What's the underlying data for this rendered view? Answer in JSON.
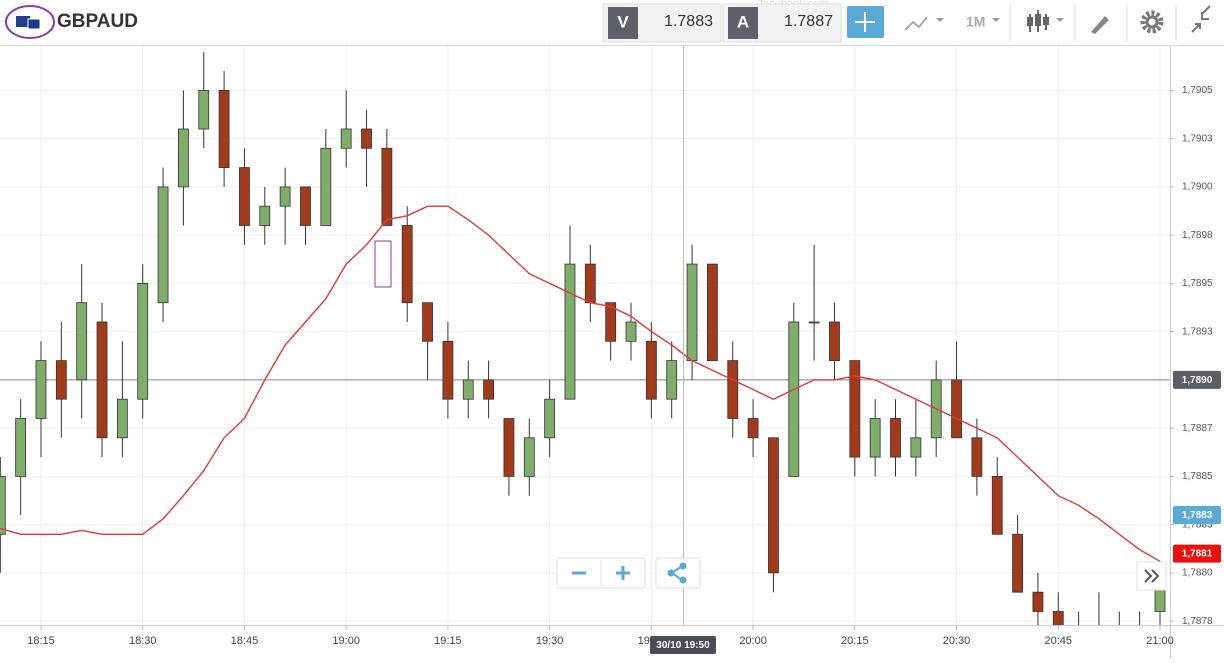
{
  "header": {
    "symbol": "GBPAUD",
    "bid_label": "V",
    "bid": 1.7883,
    "ask_label": "A",
    "ask": 1.7887,
    "timeframe": "1M",
    "watermark": "facebook.com"
  },
  "chart_data": {
    "type": "candlestick",
    "categories": [
      null,
      null,
      "18:15",
      null,
      null,
      null,
      null,
      "18:30",
      null,
      null,
      null,
      null,
      "18:45",
      null,
      null,
      null,
      null,
      "19:00",
      null,
      null,
      null,
      null,
      "19:15",
      null,
      null,
      null,
      null,
      "19:30",
      null,
      null,
      null,
      null,
      "19:45",
      null,
      null,
      null,
      null,
      "20:00",
      null,
      null,
      null,
      null,
      "20:15",
      null,
      null,
      null,
      null,
      "20:30",
      null,
      null,
      null,
      null,
      "20:45",
      null,
      null,
      null,
      null,
      "21:00"
    ],
    "open": [
      1.7882,
      1.7885,
      1.7888,
      1.7891,
      1.789,
      1.7893,
      1.7887,
      1.7889,
      1.7894,
      1.79,
      1.7903,
      1.7905,
      1.7901,
      1.7898,
      1.7899,
      1.79,
      1.7898,
      1.7902,
      1.7903,
      1.7902,
      1.7898,
      1.7894,
      1.7892,
      1.7889,
      1.789,
      1.7888,
      1.7885,
      1.7887,
      1.7889,
      1.7896,
      1.7894,
      1.7892,
      1.7892,
      1.7889,
      1.7891,
      1.7896,
      1.7891,
      1.7888,
      1.7887,
      1.7885,
      1.7893,
      1.7893,
      1.7891,
      1.7886,
      1.7888,
      1.7886,
      1.7887,
      1.789,
      1.7887,
      1.7885,
      1.7882,
      1.7879,
      1.7878,
      1.7877,
      1.7877,
      1.7877,
      1.7876,
      1.7878
    ],
    "high": [
      1.7886,
      1.7889,
      1.7892,
      1.7893,
      1.7896,
      1.7894,
      1.7892,
      1.7896,
      1.7901,
      1.7905,
      1.7907,
      1.7906,
      1.7902,
      1.79,
      1.7901,
      1.79,
      1.7903,
      1.7905,
      1.7904,
      1.7903,
      1.7899,
      1.7894,
      1.7893,
      1.7891,
      1.7891,
      1.7888,
      1.7888,
      1.789,
      1.7898,
      1.7897,
      1.7894,
      1.7894,
      1.7893,
      1.7892,
      1.7897,
      1.7896,
      1.7892,
      1.7889,
      1.7887,
      1.7894,
      1.7897,
      1.7894,
      1.7891,
      1.7889,
      1.7889,
      1.7889,
      1.7891,
      1.7892,
      1.7888,
      1.7886,
      1.7883,
      1.788,
      1.7879,
      1.7878,
      1.7879,
      1.7878,
      1.7878,
      1.788
    ],
    "low": [
      1.788,
      1.7883,
      1.7886,
      1.7887,
      1.7888,
      1.7886,
      1.7886,
      1.7888,
      1.7893,
      1.7898,
      1.7902,
      1.79,
      1.7897,
      1.7897,
      1.7897,
      1.7897,
      1.7898,
      1.7901,
      1.79,
      1.7898,
      1.7893,
      1.789,
      1.7888,
      1.7888,
      1.7888,
      1.7884,
      1.7884,
      1.7886,
      1.7889,
      1.7893,
      1.7891,
      1.7891,
      1.7888,
      1.7888,
      1.789,
      1.7891,
      1.7887,
      1.7886,
      1.7879,
      1.7885,
      1.7891,
      1.789,
      1.7885,
      1.7885,
      1.7885,
      1.7885,
      1.7886,
      1.7887,
      1.7884,
      1.7882,
      1.7879,
      1.7877,
      1.7876,
      1.7876,
      1.7876,
      1.7876,
      1.7876,
      1.7877
    ],
    "close": [
      1.7885,
      1.7888,
      1.7891,
      1.7889,
      1.7894,
      1.7887,
      1.7889,
      1.7895,
      1.79,
      1.7903,
      1.7905,
      1.7901,
      1.7898,
      1.7899,
      1.79,
      1.7898,
      1.7902,
      1.7903,
      1.7902,
      1.7898,
      1.7894,
      1.7892,
      1.7889,
      1.789,
      1.7889,
      1.7885,
      1.7887,
      1.7889,
      1.7896,
      1.7894,
      1.7892,
      1.7893,
      1.7889,
      1.7891,
      1.7896,
      1.7891,
      1.7888,
      1.7887,
      1.788,
      1.7893,
      1.7893,
      1.7891,
      1.7886,
      1.7888,
      1.7886,
      1.7887,
      1.789,
      1.7887,
      1.7885,
      1.7882,
      1.7879,
      1.7878,
      1.7877,
      1.7876,
      1.7877,
      1.7876,
      1.7877,
      1.788
    ],
    "up_color": "#7fae6b",
    "down_color": "#a23a1c",
    "moving_average": {
      "color": "#e03a3a",
      "values": [
        1.78823,
        1.7882,
        1.7882,
        1.7882,
        1.78822,
        1.7882,
        1.7882,
        1.7882,
        1.78828,
        1.7884,
        1.78853,
        1.7887,
        1.7888,
        1.789,
        1.78918,
        1.7893,
        1.78942,
        1.7896,
        1.7897,
        1.78983,
        1.78985,
        1.7899,
        1.7899,
        1.78983,
        1.78975,
        1.78965,
        1.78955,
        1.7895,
        1.78945,
        1.7894,
        1.78938,
        1.78933,
        1.78925,
        1.78918,
        1.7891,
        1.78905,
        1.789,
        1.78895,
        1.7889,
        1.78895,
        1.789,
        1.789,
        1.78902,
        1.789,
        1.78895,
        1.7889,
        1.78885,
        1.7888,
        1.78875,
        1.7887,
        1.7886,
        1.7885,
        1.7884,
        1.78835,
        1.78828,
        1.7882,
        1.78812,
        1.78806
      ]
    },
    "ylim": [
      1.78773,
      1.79073
    ],
    "yticks": [
      {
        "value": 1.7905,
        "label": "1,7905"
      },
      {
        "value": 1.79025,
        "label": "1,7903"
      },
      {
        "value": 1.79,
        "label": "1,7900"
      },
      {
        "value": 1.78975,
        "label": "1,7898"
      },
      {
        "value": 1.7895,
        "label": "1,7895"
      },
      {
        "value": 1.78925,
        "label": "1,7893"
      },
      {
        "value": 1.78875,
        "label": "1,7887"
      },
      {
        "value": 1.7885,
        "label": "1,7885"
      },
      {
        "value": 1.78825,
        "label": "1,7883"
      },
      {
        "value": 1.788,
        "label": "1,7880"
      },
      {
        "value": 1.78775,
        "label": "1,7878"
      }
    ],
    "price_lines": [
      {
        "value": 1.789,
        "label": "1,7890",
        "color": "#5a5f66"
      },
      {
        "value": 1.7883,
        "label": "1,7883",
        "color": "#5aaad8"
      },
      {
        "value": 1.7881,
        "label": "1,7881",
        "color": "#e8120c"
      }
    ],
    "crosshair_label": "30/10 19:50",
    "grid": true
  }
}
